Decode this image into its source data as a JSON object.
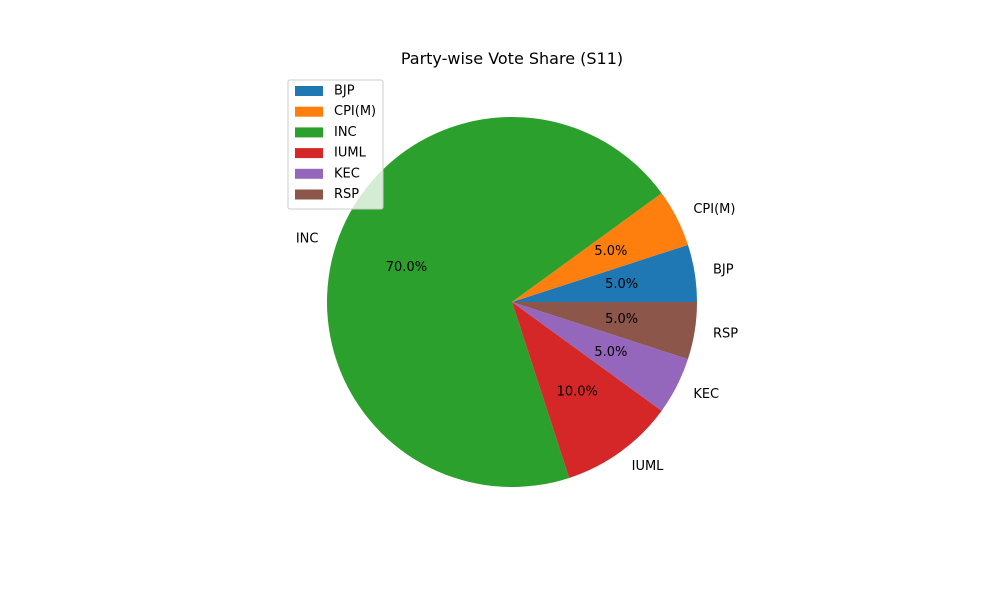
{
  "chart_data": {
    "type": "pie",
    "title": "Party-wise Vote Share (S11)",
    "categories": [
      "BJP",
      "CPI(M)",
      "INC",
      "IUML",
      "KEC",
      "RSP"
    ],
    "values": [
      5.0,
      5.0,
      70.0,
      10.0,
      5.0,
      5.0
    ],
    "percent_labels": [
      "5.0%",
      "5.0%",
      "70.0%",
      "10.0%",
      "5.0%",
      "5.0%"
    ],
    "colors": [
      "#1f77b4",
      "#ff7f0e",
      "#2ca02c",
      "#d62728",
      "#9467bd",
      "#8c564b"
    ],
    "start_angle_deg": 0,
    "direction": "counterclockwise",
    "legend": {
      "placement": "upper-left",
      "entries": [
        "BJP",
        "CPI(M)",
        "INC",
        "IUML",
        "KEC",
        "RSP"
      ]
    }
  }
}
